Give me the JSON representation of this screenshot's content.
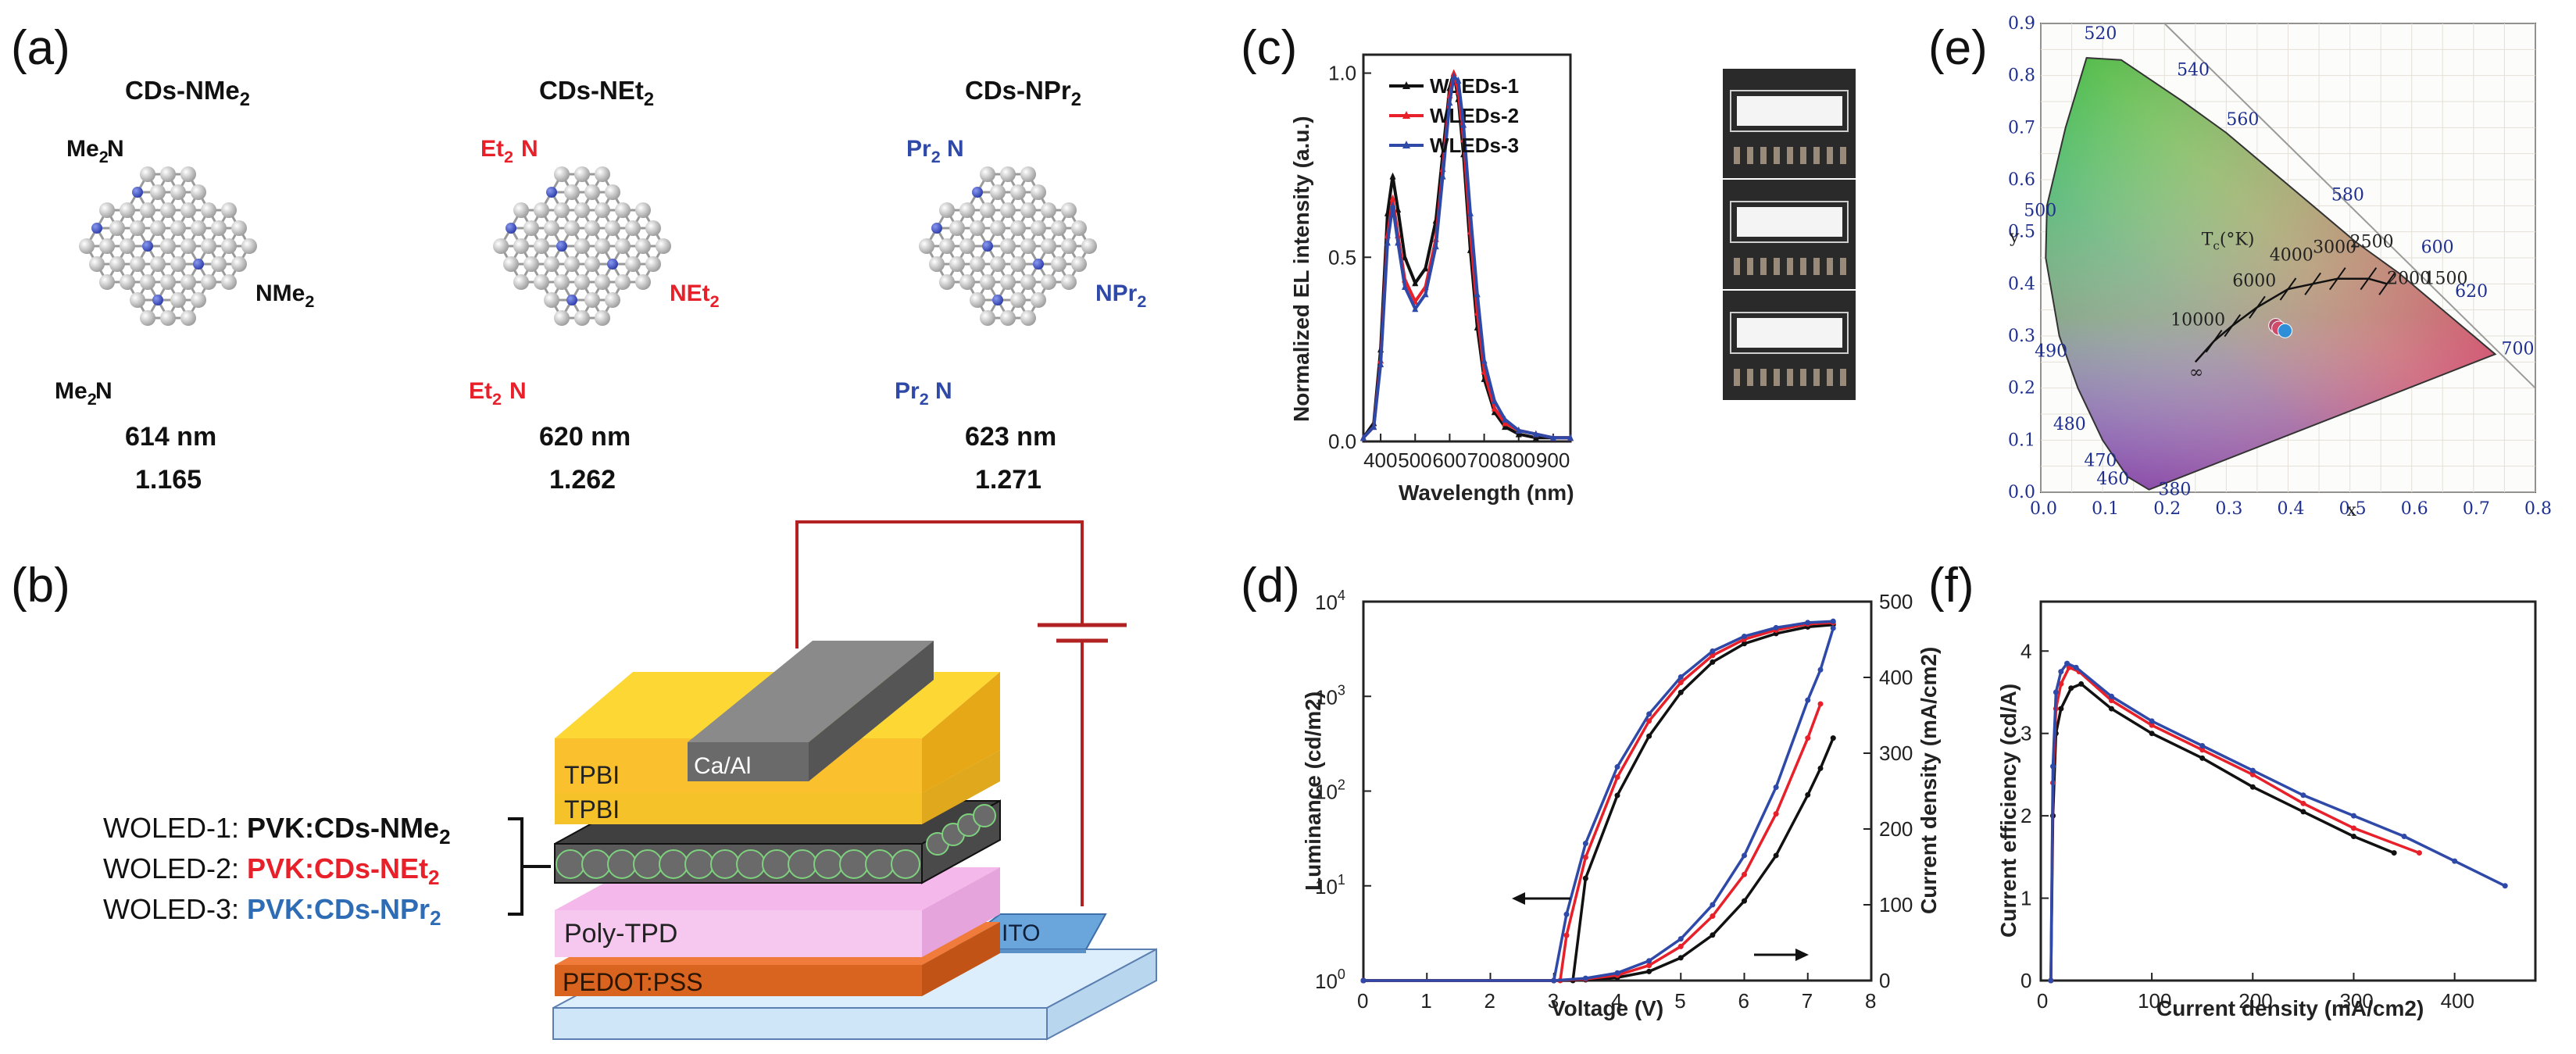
{
  "panels": {
    "a": "(a)",
    "b": "(b)",
    "c": "(c)",
    "d": "(d)",
    "e": "(e)",
    "f": "(f)"
  },
  "panel_a": {
    "molecules": [
      {
        "title": "CDs-NMe",
        "title_sub": "2",
        "group_prefix": "Me",
        "group_sub": "2",
        "right_group": "NMe",
        "wavelength": "614 nm",
        "value": "1.165",
        "color": "#111111"
      },
      {
        "title": "CDs-NEt",
        "title_sub": "2",
        "group_prefix": "Et",
        "group_sub": "2",
        "right_group": "NEt",
        "wavelength": "620 nm",
        "value": "1.262",
        "color": "#e8202a"
      },
      {
        "title": "CDs-NPr",
        "title_sub": "2",
        "group_prefix": "Pr",
        "group_sub": "2",
        "right_group": "NPr",
        "wavelength": "623 nm",
        "value": "1.271",
        "color": "#2e49a8"
      }
    ]
  },
  "panel_b": {
    "layers": {
      "cathode": "Ca/Al",
      "etl": "TPBI",
      "htl": "Poly-TPD",
      "hil": "PEDOT:PSS",
      "anode": "ITO"
    },
    "devices": [
      {
        "name": "WOLED-1: ",
        "emitter": "PVK:CDs-NMe",
        "sub": "2",
        "color": "#111111"
      },
      {
        "name": "WOLED-2: ",
        "emitter": "PVK:CDs-NEt",
        "sub": "2",
        "color": "#e8202a"
      },
      {
        "name": "WOLED-3: ",
        "emitter": "PVK:CDs-NPr",
        "sub": "2",
        "color": "#2e6db5"
      }
    ]
  },
  "chart_data": [
    {
      "id": "c",
      "type": "line",
      "title": "",
      "xlabel": "Wavelength (nm)",
      "ylabel": "Normalized EL intensity (a.u.)",
      "xlim": [
        350,
        950
      ],
      "ylim": [
        0,
        1.05
      ],
      "xticks": [
        "400",
        "500",
        "600",
        "700",
        "800",
        "900"
      ],
      "yticks": [
        "0.0",
        "0.5",
        "1.0"
      ],
      "legend": "top-left",
      "x": [
        350,
        380,
        400,
        420,
        435,
        450,
        470,
        500,
        530,
        560,
        580,
        600,
        612,
        625,
        640,
        660,
        680,
        700,
        730,
        760,
        800,
        850,
        900,
        950
      ],
      "series": [
        {
          "name": "WLEDs-1",
          "color": "#111111",
          "values": [
            0.01,
            0.05,
            0.25,
            0.62,
            0.72,
            0.63,
            0.5,
            0.43,
            0.47,
            0.6,
            0.78,
            0.96,
            1.0,
            0.93,
            0.78,
            0.52,
            0.31,
            0.17,
            0.08,
            0.04,
            0.02,
            0.01,
            0.01,
            0.01
          ]
        },
        {
          "name": "WLEDs-2",
          "color": "#e8202a",
          "values": [
            0.01,
            0.04,
            0.22,
            0.56,
            0.66,
            0.56,
            0.44,
            0.38,
            0.42,
            0.55,
            0.74,
            0.94,
            1.0,
            0.95,
            0.82,
            0.57,
            0.35,
            0.19,
            0.09,
            0.05,
            0.03,
            0.02,
            0.01,
            0.01
          ]
        },
        {
          "name": "WLEDs-3",
          "color": "#2e49a8",
          "values": [
            0.01,
            0.04,
            0.21,
            0.54,
            0.64,
            0.54,
            0.42,
            0.36,
            0.4,
            0.53,
            0.72,
            0.92,
            0.99,
            0.98,
            0.86,
            0.62,
            0.4,
            0.22,
            0.11,
            0.06,
            0.03,
            0.02,
            0.01,
            0.01
          ]
        }
      ]
    },
    {
      "id": "d",
      "type": "line",
      "title": "",
      "xlabel": "Voltage (V)",
      "ylabel": "Luminance (cd/m2)",
      "ylabel_right": "Current density (mA/cm2)",
      "xlim": [
        0,
        8
      ],
      "ylim_log": [
        1,
        10000
      ],
      "ylim_right": [
        0,
        500
      ],
      "xticks": [
        "0",
        "1",
        "2",
        "3",
        "4",
        "5",
        "6",
        "7",
        "8"
      ],
      "yticks_left": [
        "10",
        "10",
        "10",
        "10",
        "10"
      ],
      "yticks_left_exp": [
        "0",
        "1",
        "2",
        "3",
        "4"
      ],
      "yticks_right": [
        "0",
        "100",
        "200",
        "300",
        "400",
        "500"
      ],
      "luminance_x": [
        3.0,
        3.2,
        3.5,
        4.0,
        4.5,
        5.0,
        5.5,
        6.0,
        6.5,
        7.0,
        7.4
      ],
      "luminance": [
        {
          "name": "WLEDs-1",
          "color": "#111111",
          "x_start": 3.3,
          "values": [
            1,
            1,
            12,
            90,
            380,
            1100,
            2300,
            3600,
            4600,
            5400,
            5700
          ]
        },
        {
          "name": "WLEDs-2",
          "color": "#e8202a",
          "x_start": 3.1,
          "values": [
            1,
            3,
            20,
            140,
            550,
            1400,
            2700,
            4000,
            5000,
            5800,
            6000
          ]
        },
        {
          "name": "WLEDs-3",
          "color": "#2e49a8",
          "x_start": 3.0,
          "values": [
            1,
            5,
            28,
            180,
            650,
            1600,
            3000,
            4300,
            5300,
            6000,
            6200
          ]
        }
      ],
      "current_x": [
        0,
        3.0,
        3.5,
        4.0,
        4.5,
        5.0,
        5.5,
        6.0,
        6.5,
        7.0,
        7.2,
        7.4
      ],
      "current": [
        {
          "name": "WLEDs-1",
          "color": "#111111",
          "values": [
            0,
            0,
            1,
            4,
            12,
            30,
            60,
            105,
            165,
            245,
            280,
            320
          ]
        },
        {
          "name": "WLEDs-2",
          "color": "#e8202a",
          "values": [
            0,
            0,
            2,
            7,
            20,
            45,
            85,
            140,
            220,
            320,
            365,
            null
          ]
        },
        {
          "name": "WLEDs-3",
          "color": "#2e49a8",
          "values": [
            0,
            0,
            3,
            10,
            26,
            55,
            100,
            165,
            255,
            370,
            410,
            465
          ]
        }
      ]
    },
    {
      "id": "e",
      "type": "scatter",
      "title": "",
      "xlabel": "x",
      "ylabel": "y",
      "xlim": [
        0,
        0.8
      ],
      "ylim": [
        0,
        0.9
      ],
      "xticks": [
        "0.0",
        "0.1",
        "0.2",
        "0.3",
        "0.4",
        "0.5",
        "0.6",
        "0.7",
        "0.8"
      ],
      "yticks": [
        "0.0",
        "0.1",
        "0.2",
        "0.3",
        "0.4",
        "0.5",
        "0.6",
        "0.7",
        "0.8",
        "0.9"
      ],
      "wavelength_labels": [
        "520",
        "540",
        "560",
        "580",
        "600",
        "620",
        "700",
        "500",
        "490",
        "480",
        "470",
        "460",
        "380"
      ],
      "planckian_label": "T",
      "planckian_sub": "c",
      "planckian_unit": "(°K)",
      "temperatures": [
        "10000",
        "6000",
        "4000",
        "3000",
        "2500",
        "2000",
        "1500",
        "∞"
      ],
      "points": [
        {
          "name": "WLEDs-1",
          "x": 0.38,
          "y": 0.32,
          "color": "#b04a6a"
        },
        {
          "name": "WLEDs-2",
          "x": 0.385,
          "y": 0.315,
          "color": "#d04a6a"
        },
        {
          "name": "WLEDs-3",
          "x": 0.395,
          "y": 0.31,
          "color": "#2e8fd8"
        }
      ]
    },
    {
      "id": "f",
      "type": "line",
      "title": "",
      "xlabel": "Current density (mA/cm2)",
      "ylabel": "Current efficiency (cd/A)",
      "xlim": [
        -10,
        480
      ],
      "ylim": [
        0,
        4.6
      ],
      "xticks": [
        "0",
        "100",
        "200",
        "300",
        "400"
      ],
      "yticks": [
        "0",
        "1",
        "2",
        "3",
        "4"
      ],
      "series": [
        {
          "name": "WLEDs-1",
          "color": "#111111",
          "x": [
            0,
            2,
            5,
            10,
            20,
            30,
            60,
            100,
            150,
            200,
            250,
            300,
            340
          ],
          "values": [
            0,
            2.0,
            3.0,
            3.3,
            3.55,
            3.6,
            3.3,
            3.0,
            2.7,
            2.35,
            2.05,
            1.75,
            1.55
          ]
        },
        {
          "name": "WLEDs-2",
          "color": "#e8202a",
          "x": [
            0,
            2,
            5,
            10,
            18,
            28,
            60,
            100,
            150,
            200,
            250,
            300,
            365
          ],
          "values": [
            0,
            2.4,
            3.3,
            3.6,
            3.8,
            3.75,
            3.4,
            3.1,
            2.8,
            2.5,
            2.15,
            1.85,
            1.55
          ]
        },
        {
          "name": "WLEDs-3",
          "color": "#2e49a8",
          "x": [
            0,
            2,
            5,
            10,
            16,
            25,
            60,
            100,
            150,
            200,
            250,
            300,
            350,
            400,
            450
          ],
          "values": [
            0,
            2.6,
            3.5,
            3.75,
            3.85,
            3.8,
            3.45,
            3.15,
            2.85,
            2.55,
            2.25,
            2.0,
            1.75,
            1.45,
            1.15
          ]
        }
      ]
    }
  ]
}
